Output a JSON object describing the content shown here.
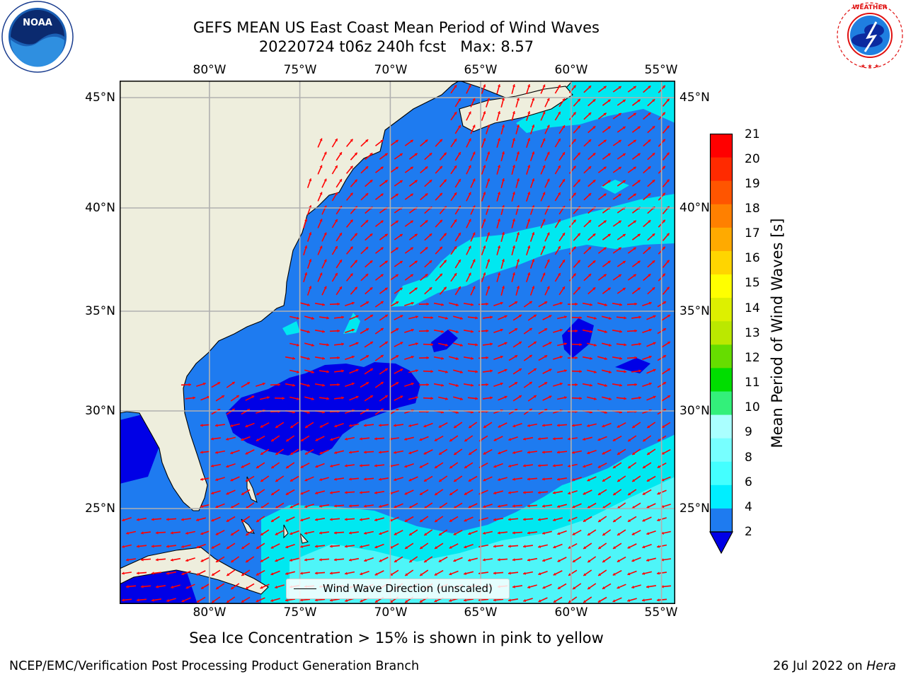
{
  "title": {
    "line1": "GEFS MEAN US East Coast Mean Period of Wind Waves",
    "line2": "20220724 t06z 240h fcst   Max: 8.57"
  },
  "logos": {
    "left": {
      "text": "NOAA",
      "ring_text": "NATIONAL OCEANIC AND ATMOSPHERIC ADMINISTRATION · U.S. DEPARTMENT OF COMMERCE",
      "icon": "noaa-logo"
    },
    "right": {
      "ring_text": "NATIONAL WEATHER SERVICE",
      "icon": "nws-logo"
    }
  },
  "map": {
    "lon_range": [
      -85,
      -54.4
    ],
    "lat_range": [
      20.3,
      46.4
    ],
    "lon_ticks": [
      "80°W",
      "75°W",
      "70°W",
      "65°W",
      "60°W",
      "55°W"
    ],
    "lat_ticks": [
      "45°N",
      "40°N",
      "35°N",
      "30°N",
      "25°N"
    ],
    "lon_values": [
      -80,
      -75,
      -70,
      -65,
      -60,
      -55
    ],
    "lat_values": [
      45,
      40,
      35,
      30,
      25
    ],
    "grid": true,
    "colors": {
      "land": "#eeeedd",
      "ocean_main": "#1e7bf0",
      "ocean_low": "#0000e6",
      "cyan": "#00e8f0",
      "cyan_light": "#4ef5f8",
      "arrow": "#ff0000"
    },
    "legend": {
      "label": "Wind Wave Direction (unscaled)"
    }
  },
  "colorbar": {
    "label": "Mean Period of Wind Waves [s]",
    "ticks": [
      "21",
      "20",
      "19",
      "18",
      "17",
      "16",
      "15",
      "14",
      "13",
      "12",
      "11",
      "10",
      "9",
      "8",
      "6",
      "4",
      "2"
    ],
    "colors": [
      "#ff0000",
      "#ff2a00",
      "#ff5500",
      "#ff8000",
      "#ffaa00",
      "#ffd500",
      "#ffff00",
      "#ddf000",
      "#bbe800",
      "#66dd00",
      "#00dd00",
      "#33f07a",
      "#aaffff",
      "#77ffff",
      "#44ffff",
      "#00eeff",
      "#1e7bf0"
    ],
    "under_color": "#0000e6"
  },
  "footer": {
    "note": "Sea Ice Concentration > 15% is shown in pink to yellow",
    "credit": "NCEP/EMC/Verification Post Processing Product Generation Branch",
    "date": "26 Jul 2022 on",
    "host": "Hera"
  }
}
